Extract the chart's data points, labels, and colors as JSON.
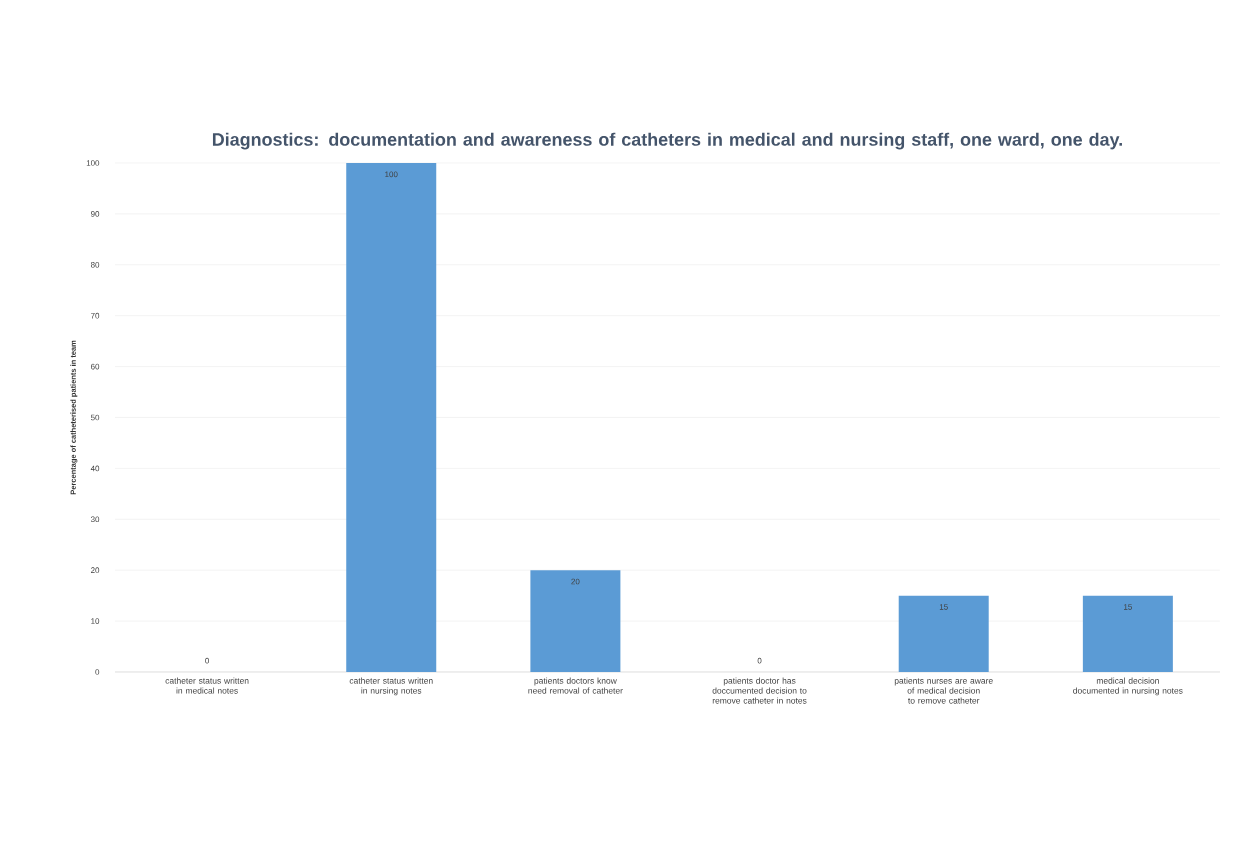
{
  "chart_data": {
    "type": "bar",
    "title": "Diagnostics: documentation and awareness of catheters in medical and nursing staff, one ward, one day.",
    "ylabel": "Percentage of catheterised patients in team",
    "categories": [
      "catheter status written in medical notes",
      "catheter status written in nursing notes",
      "patients doctors know need removal of catheter",
      "patients doctor has doccumented decision to remove catheter in notes",
      "patients nurses are aware of medical decision to remove catheter",
      "medical decision documented in nursing notes"
    ],
    "values": [
      0,
      100,
      20,
      0,
      15,
      15
    ],
    "color": "#5b9bd5",
    "ylim": [
      0,
      100
    ],
    "yticks": [
      0,
      10,
      20,
      30,
      40,
      50,
      60,
      70,
      80,
      90,
      100
    ],
    "grid": "y",
    "data_labels": true
  }
}
